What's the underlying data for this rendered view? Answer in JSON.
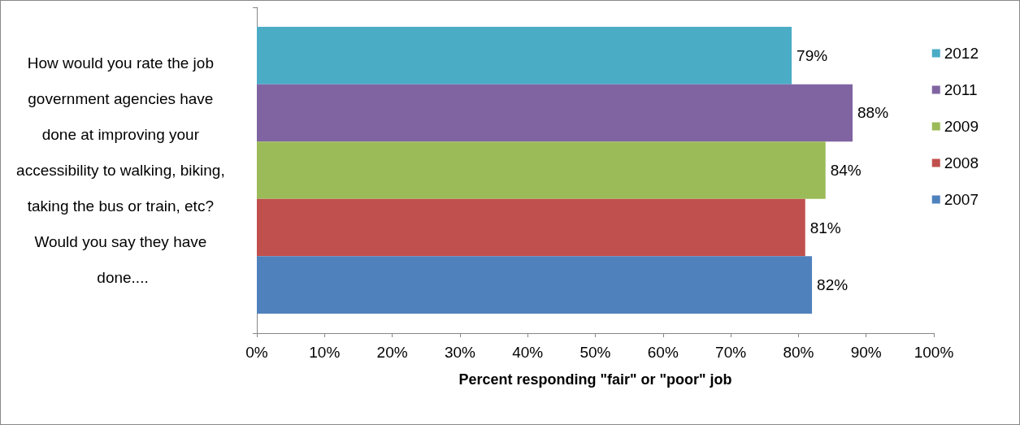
{
  "chart_data": {
    "type": "bar",
    "orientation": "horizontal",
    "categories": [
      "How would you rate the job government agencies have done at improving your accessibility to walking, biking, taking the bus or train, etc? Would you say they have done...."
    ],
    "series": [
      {
        "name": "2007",
        "color": "#4f81bd",
        "values": [
          82
        ],
        "value_labels": [
          "82%"
        ]
      },
      {
        "name": "2008",
        "color": "#c0504d",
        "values": [
          81
        ],
        "value_labels": [
          "81%"
        ]
      },
      {
        "name": "2009",
        "color": "#9bbb59",
        "values": [
          84
        ],
        "value_labels": [
          "84%"
        ]
      },
      {
        "name": "2011",
        "color": "#8064a2",
        "values": [
          88
        ],
        "value_labels": [
          "88%"
        ]
      },
      {
        "name": "2012",
        "color": "#4bacc6",
        "values": [
          79
        ],
        "value_labels": [
          "79%"
        ]
      }
    ],
    "xlabel": "Percent responding \"fair\" or \"poor\" job",
    "xlim": [
      0,
      100
    ],
    "xticks": [
      {
        "value": 0,
        "label": "0%"
      },
      {
        "value": 10,
        "label": "10%"
      },
      {
        "value": 20,
        "label": "20%"
      },
      {
        "value": 30,
        "label": "30%"
      },
      {
        "value": 40,
        "label": "40%"
      },
      {
        "value": 50,
        "label": "50%"
      },
      {
        "value": 60,
        "label": "60%"
      },
      {
        "value": 70,
        "label": "70%"
      },
      {
        "value": 80,
        "label": "80%"
      },
      {
        "value": 90,
        "label": "90%"
      },
      {
        "value": 100,
        "label": "100%"
      }
    ],
    "grid": false,
    "legend": "right"
  }
}
